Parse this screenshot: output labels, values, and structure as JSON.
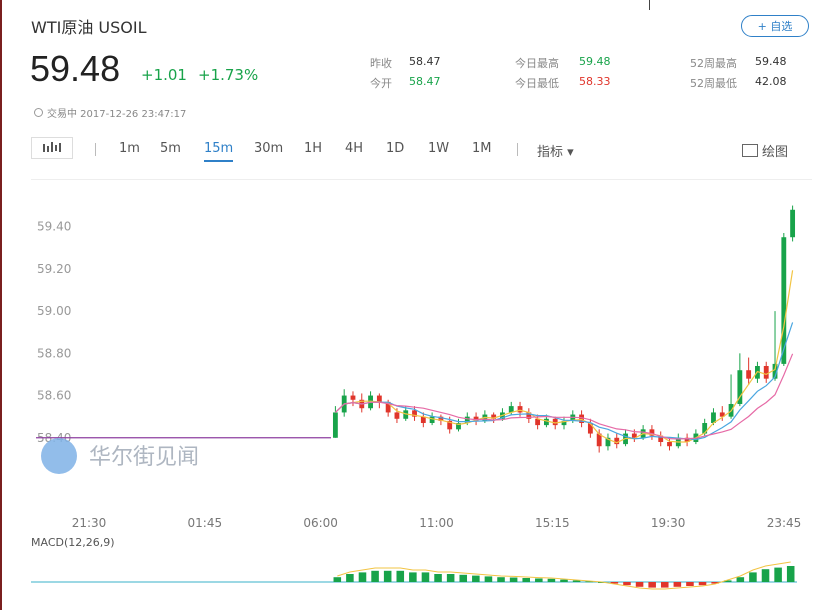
{
  "header": {
    "title": "WTI原油 USOIL",
    "fav_label": "+ 自选",
    "price": "59.48",
    "change": "+1.01",
    "change_pct": "+1.73%",
    "time_label": "交易中 2017-12-26 23:47:17"
  },
  "stats": [
    {
      "label": "昨收",
      "value": "58.47"
    },
    {
      "label": "今开",
      "value": "58.47"
    },
    {
      "label": "今日最高",
      "value": "59.48"
    },
    {
      "label": "今日最低",
      "value": "58.33"
    },
    {
      "label": "52周最高",
      "value": "59.48"
    },
    {
      "label": "52周最低",
      "value": "42.08"
    }
  ],
  "toolbar": {
    "chart_type_icon": "candlestick-icon",
    "intervals": [
      "1m",
      "5m",
      "15m",
      "30m",
      "1H",
      "4H",
      "1D",
      "1W",
      "1M"
    ],
    "active_interval": "15m",
    "indicators_label": "指标 ▾",
    "draw_label": "绘图"
  },
  "colors": {
    "up": "#18a34a",
    "down": "#e0352b",
    "accent": "#2f80c8",
    "flat_line": "#8e3fa0",
    "ma_yellow": "#f2c443",
    "ma_blue": "#4aa6e0",
    "ma_pink": "#e66aa6"
  },
  "watermark": "华尔街见闻",
  "chart_data": {
    "type": "candlestick",
    "y_ticks": [
      58.4,
      58.6,
      58.8,
      59.0,
      59.2,
      59.4
    ],
    "ylim": [
      58.2,
      59.55
    ],
    "x_ticks": [
      "21:30",
      "01:45",
      "06:00",
      "11:00",
      "15:15",
      "19:30",
      "23:45"
    ],
    "flat_value": 58.4,
    "candles": [
      [
        58.4,
        58.52,
        58.4,
        58.55
      ],
      [
        58.52,
        58.6,
        58.5,
        58.63
      ],
      [
        58.6,
        58.58,
        58.55,
        58.62
      ],
      [
        58.58,
        58.54,
        58.52,
        58.61
      ],
      [
        58.54,
        58.6,
        58.53,
        58.62
      ],
      [
        58.6,
        58.57,
        58.54,
        58.61
      ],
      [
        58.57,
        58.52,
        58.5,
        58.58
      ],
      [
        58.52,
        58.49,
        58.47,
        58.54
      ],
      [
        58.49,
        58.53,
        58.48,
        58.55
      ],
      [
        58.53,
        58.5,
        58.48,
        58.55
      ],
      [
        58.5,
        58.47,
        58.45,
        58.52
      ],
      [
        58.47,
        58.5,
        58.46,
        58.52
      ],
      [
        58.5,
        58.48,
        58.46,
        58.51
      ],
      [
        58.48,
        58.44,
        58.42,
        58.5
      ],
      [
        58.44,
        58.47,
        58.43,
        58.49
      ],
      [
        58.47,
        58.5,
        58.46,
        58.52
      ],
      [
        58.5,
        58.48,
        58.46,
        58.52
      ],
      [
        58.48,
        58.51,
        58.47,
        58.53
      ],
      [
        58.51,
        58.49,
        58.47,
        58.52
      ],
      [
        58.49,
        58.52,
        58.48,
        58.54
      ],
      [
        58.52,
        58.55,
        58.51,
        58.57
      ],
      [
        58.55,
        58.52,
        58.5,
        58.57
      ],
      [
        58.52,
        58.49,
        58.47,
        58.54
      ],
      [
        58.49,
        58.46,
        58.44,
        58.51
      ],
      [
        58.46,
        58.49,
        58.45,
        58.51
      ],
      [
        58.49,
        58.46,
        58.44,
        58.5
      ],
      [
        58.46,
        58.48,
        58.44,
        58.5
      ],
      [
        58.48,
        58.51,
        58.47,
        58.53
      ],
      [
        58.51,
        58.47,
        58.45,
        58.53
      ],
      [
        58.47,
        58.42,
        58.4,
        58.49
      ],
      [
        58.42,
        58.36,
        58.33,
        58.44
      ],
      [
        58.36,
        58.4,
        58.34,
        58.42
      ],
      [
        58.4,
        58.37,
        58.35,
        58.42
      ],
      [
        58.37,
        58.42,
        58.36,
        58.44
      ],
      [
        58.42,
        58.4,
        58.38,
        58.44
      ],
      [
        58.4,
        58.44,
        58.39,
        58.46
      ],
      [
        58.44,
        58.41,
        58.39,
        58.46
      ],
      [
        58.41,
        58.38,
        58.36,
        58.43
      ],
      [
        58.38,
        58.36,
        58.34,
        58.4
      ],
      [
        58.36,
        58.4,
        58.35,
        58.42
      ],
      [
        58.4,
        58.38,
        58.36,
        58.42
      ],
      [
        58.38,
        58.42,
        58.37,
        58.44
      ],
      [
        58.42,
        58.47,
        58.41,
        58.49
      ],
      [
        58.47,
        58.52,
        58.46,
        58.54
      ],
      [
        58.52,
        58.5,
        58.48,
        58.55
      ],
      [
        58.5,
        58.56,
        58.49,
        58.7
      ],
      [
        58.56,
        58.72,
        58.55,
        58.8
      ],
      [
        58.72,
        58.68,
        58.65,
        58.78
      ],
      [
        58.68,
        58.74,
        58.66,
        58.76
      ],
      [
        58.74,
        58.68,
        58.66,
        58.76
      ],
      [
        58.68,
        58.75,
        58.67,
        59.0
      ],
      [
        58.75,
        59.35,
        58.74,
        59.37
      ],
      [
        59.35,
        59.48,
        59.33,
        59.5
      ]
    ]
  },
  "macd": {
    "label": "MACD(12,26,9)",
    "bars": [
      0.3,
      0.5,
      0.6,
      0.7,
      0.7,
      0.7,
      0.6,
      0.6,
      0.5,
      0.5,
      0.45,
      0.4,
      0.35,
      0.3,
      0.28,
      0.25,
      0.22,
      0.2,
      0.15,
      0.1,
      0.05,
      0.0,
      -0.1,
      -0.2,
      -0.3,
      -0.35,
      -0.35,
      -0.3,
      -0.25,
      -0.2,
      -0.1,
      0.1,
      0.3,
      0.6,
      0.8,
      0.9,
      1.0
    ]
  }
}
